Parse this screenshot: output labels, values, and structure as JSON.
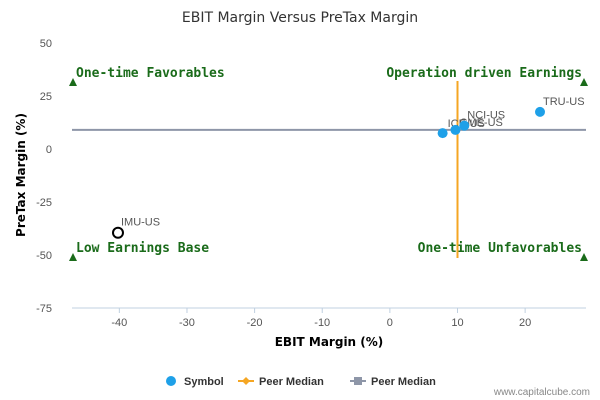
{
  "chart_data": {
    "type": "scatter",
    "title": "EBIT Margin Versus PreTax Margin",
    "xlabel": "EBIT Margin (%)",
    "ylabel": "PreTax Margin (%)",
    "xlim": [
      -47,
      29
    ],
    "ylim": [
      -75,
      50
    ],
    "x_ticks": [
      -40,
      -30,
      -20,
      -10,
      0,
      10,
      20
    ],
    "y_ticks": [
      50,
      25,
      0,
      -25,
      -50,
      -75
    ],
    "grid": false,
    "legend_position": "bottom",
    "points": [
      {
        "label": "IMU-US",
        "x": -40.2,
        "y": -39.5,
        "highlight": true
      },
      {
        "label": "ICE-US",
        "x": 7.8,
        "y": 7.5,
        "highlight": false
      },
      {
        "label": "CME-US",
        "x": 9.7,
        "y": 9.0,
        "highlight": false
      },
      {
        "label": "NCI-US",
        "x": 11.0,
        "y": 11.0,
        "highlight": false
      },
      {
        "label": "TRU-US",
        "x": 22.2,
        "y": 17.5,
        "highlight": false
      }
    ],
    "peer_median_x": 10,
    "peer_median_y": 9,
    "quadrants": {
      "top_left": "One-time Favorables",
      "top_right": "Operation driven Earnings",
      "bottom_left": "Low Earnings Base",
      "bottom_right": "One-time Unfavorables"
    },
    "legend": [
      {
        "label": "Symbol",
        "marker": "circle",
        "color": "#1ea0e8"
      },
      {
        "label": "Peer Median",
        "marker": "diamond-line",
        "color": "#f5a623"
      },
      {
        "label": "Peer Median",
        "marker": "square-line",
        "color": "#8e96a8"
      }
    ],
    "colors": {
      "symbol": "#1ea0e8",
      "median_x": "#f5a623",
      "median_y": "#8e96a8",
      "quadrant_text": "#1a6b1a",
      "triangle": "#1a6b1a"
    }
  },
  "credit": "www.capitalcube.com"
}
